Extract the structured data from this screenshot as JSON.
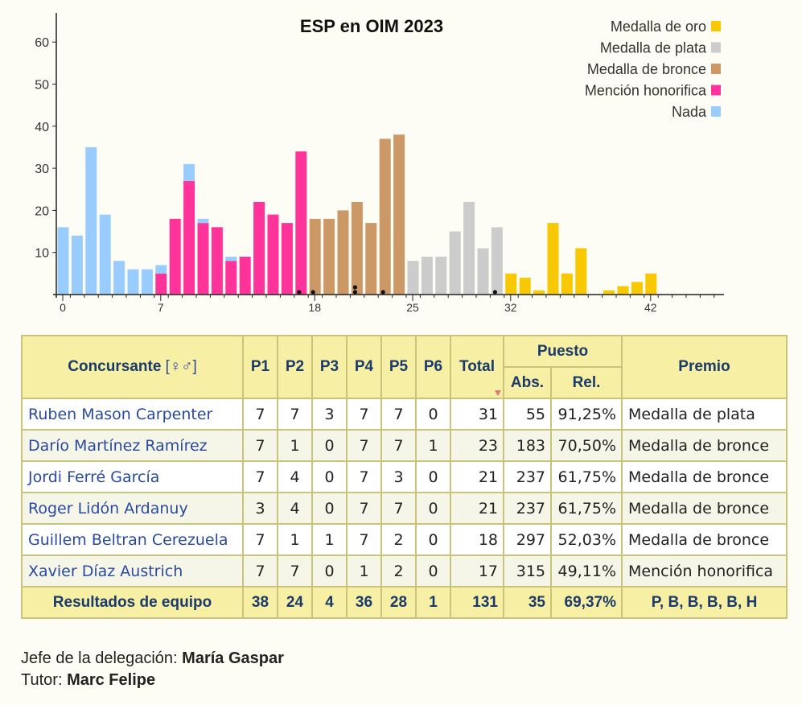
{
  "chart_data": {
    "type": "bar",
    "title": "ESP en OIM 2023",
    "xlabel": "",
    "ylabel": "",
    "ylim": [
      0,
      65
    ],
    "xlim": [
      0,
      47
    ],
    "y_ticks": [
      10,
      20,
      30,
      40,
      50,
      60
    ],
    "x_ticks": [
      0,
      7,
      18,
      25,
      32,
      42
    ],
    "grid": false,
    "legend_position": "top-right",
    "categories": [
      "Medalla de oro",
      "Medalla de plata",
      "Medalla de bronce",
      "Mención honorifica",
      "Nada"
    ],
    "colors": {
      "Medalla de oro": "#f8c800",
      "Medalla de plata": "#cccccc",
      "Medalla de bronce": "#cc9966",
      "Mención honorifica": "#ff3399",
      "Nada": "#99ccff"
    },
    "bars": [
      {
        "x": 0,
        "segments": [
          {
            "cat": "Nada",
            "value": 16
          }
        ]
      },
      {
        "x": 1,
        "segments": [
          {
            "cat": "Nada",
            "value": 14
          }
        ]
      },
      {
        "x": 2,
        "segments": [
          {
            "cat": "Nada",
            "value": 35
          }
        ]
      },
      {
        "x": 3,
        "segments": [
          {
            "cat": "Nada",
            "value": 19
          }
        ]
      },
      {
        "x": 4,
        "segments": [
          {
            "cat": "Nada",
            "value": 8
          }
        ]
      },
      {
        "x": 5,
        "segments": [
          {
            "cat": "Nada",
            "value": 6
          }
        ]
      },
      {
        "x": 6,
        "segments": [
          {
            "cat": "Nada",
            "value": 6
          }
        ]
      },
      {
        "x": 7,
        "segments": [
          {
            "cat": "Mención honorifica",
            "value": 5
          },
          {
            "cat": "Nada",
            "value": 2
          }
        ]
      },
      {
        "x": 8,
        "segments": [
          {
            "cat": "Mención honorifica",
            "value": 18
          }
        ]
      },
      {
        "x": 9,
        "segments": [
          {
            "cat": "Mención honorifica",
            "value": 27
          },
          {
            "cat": "Nada",
            "value": 4
          }
        ]
      },
      {
        "x": 10,
        "segments": [
          {
            "cat": "Mención honorifica",
            "value": 17
          },
          {
            "cat": "Nada",
            "value": 1
          }
        ]
      },
      {
        "x": 11,
        "segments": [
          {
            "cat": "Mención honorifica",
            "value": 16
          }
        ]
      },
      {
        "x": 12,
        "segments": [
          {
            "cat": "Mención honorifica",
            "value": 8
          },
          {
            "cat": "Nada",
            "value": 1
          }
        ]
      },
      {
        "x": 13,
        "segments": [
          {
            "cat": "Mención honorifica",
            "value": 9
          }
        ]
      },
      {
        "x": 14,
        "segments": [
          {
            "cat": "Mención honorifica",
            "value": 22
          }
        ]
      },
      {
        "x": 15,
        "segments": [
          {
            "cat": "Mención honorifica",
            "value": 19
          }
        ]
      },
      {
        "x": 16,
        "segments": [
          {
            "cat": "Mención honorifica",
            "value": 17
          }
        ]
      },
      {
        "x": 17,
        "segments": [
          {
            "cat": "Mención honorifica",
            "value": 34
          }
        ]
      },
      {
        "x": 18,
        "segments": [
          {
            "cat": "Medalla de bronce",
            "value": 18
          }
        ]
      },
      {
        "x": 19,
        "segments": [
          {
            "cat": "Medalla de bronce",
            "value": 18
          }
        ]
      },
      {
        "x": 20,
        "segments": [
          {
            "cat": "Medalla de bronce",
            "value": 20
          }
        ]
      },
      {
        "x": 21,
        "segments": [
          {
            "cat": "Medalla de bronce",
            "value": 22
          }
        ]
      },
      {
        "x": 22,
        "segments": [
          {
            "cat": "Medalla de bronce",
            "value": 17
          }
        ]
      },
      {
        "x": 23,
        "segments": [
          {
            "cat": "Medalla de bronce",
            "value": 37
          }
        ]
      },
      {
        "x": 24,
        "segments": [
          {
            "cat": "Medalla de bronce",
            "value": 38
          }
        ]
      },
      {
        "x": 25,
        "segments": [
          {
            "cat": "Medalla de plata",
            "value": 8
          }
        ]
      },
      {
        "x": 26,
        "segments": [
          {
            "cat": "Medalla de plata",
            "value": 9
          }
        ]
      },
      {
        "x": 27,
        "segments": [
          {
            "cat": "Medalla de plata",
            "value": 9
          }
        ]
      },
      {
        "x": 28,
        "segments": [
          {
            "cat": "Medalla de plata",
            "value": 15
          }
        ]
      },
      {
        "x": 29,
        "segments": [
          {
            "cat": "Medalla de plata",
            "value": 22
          }
        ]
      },
      {
        "x": 30,
        "segments": [
          {
            "cat": "Medalla de plata",
            "value": 11
          }
        ]
      },
      {
        "x": 31,
        "segments": [
          {
            "cat": "Medalla de plata",
            "value": 16
          }
        ]
      },
      {
        "x": 32,
        "segments": [
          {
            "cat": "Medalla de oro",
            "value": 5
          }
        ]
      },
      {
        "x": 33,
        "segments": [
          {
            "cat": "Medalla de oro",
            "value": 4
          }
        ]
      },
      {
        "x": 34,
        "segments": [
          {
            "cat": "Medalla de oro",
            "value": 1
          }
        ]
      },
      {
        "x": 35,
        "segments": [
          {
            "cat": "Medalla de oro",
            "value": 17
          }
        ]
      },
      {
        "x": 36,
        "segments": [
          {
            "cat": "Medalla de oro",
            "value": 5
          }
        ]
      },
      {
        "x": 37,
        "segments": [
          {
            "cat": "Medalla de oro",
            "value": 11
          }
        ]
      },
      {
        "x": 38,
        "segments": []
      },
      {
        "x": 39,
        "segments": [
          {
            "cat": "Medalla de oro",
            "value": 1
          }
        ]
      },
      {
        "x": 40,
        "segments": [
          {
            "cat": "Medalla de oro",
            "value": 2
          }
        ]
      },
      {
        "x": 41,
        "segments": [
          {
            "cat": "Medalla de oro",
            "value": 3
          }
        ]
      },
      {
        "x": 42,
        "segments": [
          {
            "cat": "Medalla de oro",
            "value": 5
          }
        ]
      }
    ],
    "contestant_markers": [
      {
        "x": 17,
        "count": 1
      },
      {
        "x": 18,
        "count": 1
      },
      {
        "x": 21,
        "count": 2
      },
      {
        "x": 23,
        "count": 1
      },
      {
        "x": 31,
        "count": 1
      }
    ]
  },
  "table": {
    "headers": {
      "contestant": "Concursante",
      "gender": "[♀♂]",
      "problems": [
        "P1",
        "P2",
        "P3",
        "P4",
        "P5",
        "P6"
      ],
      "total": "Total",
      "rank": "Puesto",
      "abs": "Abs.",
      "rel": "Rel.",
      "award": "Premio"
    },
    "rows": [
      {
        "name": "Ruben Mason Carpenter",
        "scores": [
          "7",
          "7",
          "3",
          "7",
          "7",
          "0"
        ],
        "total": "31",
        "abs": "55",
        "rel": "91,25%",
        "award": "Medalla de plata"
      },
      {
        "name": "Darío Martínez Ramírez",
        "scores": [
          "7",
          "1",
          "0",
          "7",
          "7",
          "1"
        ],
        "total": "23",
        "abs": "183",
        "rel": "70,50%",
        "award": "Medalla de bronce"
      },
      {
        "name": "Jordi Ferré García",
        "scores": [
          "7",
          "4",
          "0",
          "7",
          "3",
          "0"
        ],
        "total": "21",
        "abs": "237",
        "rel": "61,75%",
        "award": "Medalla de bronce"
      },
      {
        "name": "Roger Lidón Ardanuy",
        "scores": [
          "3",
          "4",
          "0",
          "7",
          "7",
          "0"
        ],
        "total": "21",
        "abs": "237",
        "rel": "61,75%",
        "award": "Medalla de bronce"
      },
      {
        "name": "Guillem Beltran Cerezuela",
        "scores": [
          "7",
          "1",
          "1",
          "7",
          "2",
          "0"
        ],
        "total": "18",
        "abs": "297",
        "rel": "52,03%",
        "award": "Medalla de bronce"
      },
      {
        "name": "Xavier Díaz Austrich",
        "scores": [
          "7",
          "7",
          "0",
          "1",
          "2",
          "0"
        ],
        "total": "17",
        "abs": "315",
        "rel": "49,11%",
        "award": "Mención honorifica"
      }
    ],
    "team": {
      "label": "Resultados de equipo",
      "scores": [
        "38",
        "24",
        "4",
        "36",
        "28",
        "1"
      ],
      "total": "131",
      "abs": "35",
      "rel": "69,37%",
      "award": "P, B, B, B, B, H"
    }
  },
  "footer": {
    "leader_label": "Jefe de la delegación:",
    "leader_name": "María Gaspar",
    "tutor_label": "Tutor:",
    "tutor_name": "Marc Felipe"
  }
}
